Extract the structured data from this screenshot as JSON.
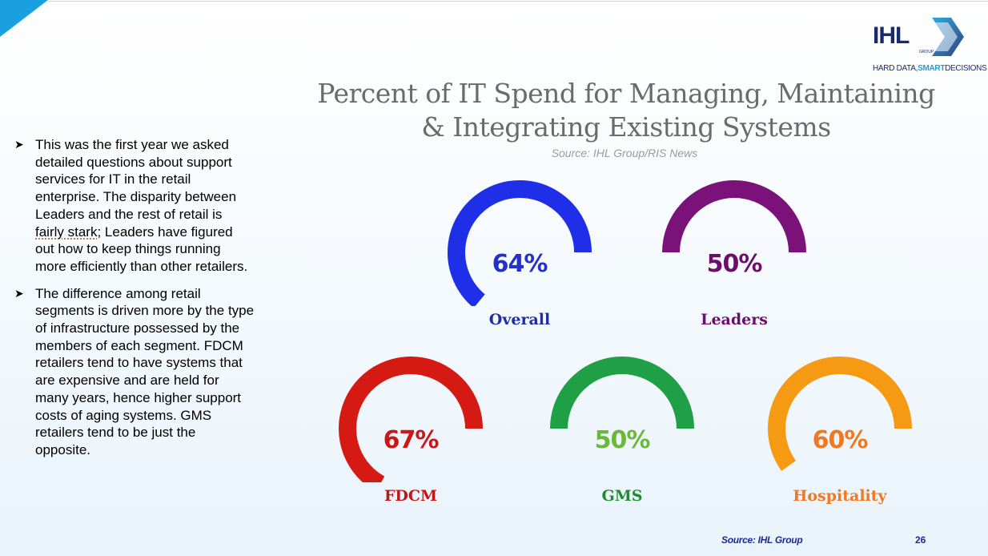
{
  "logo": {
    "text": "IHL",
    "group": "GROUP",
    "tagline_prefix": "HARD DATA,",
    "tagline_bold": "SMART",
    "tagline_suffix": "DECISIONS"
  },
  "title_line1": "Percent of IT Spend for Managing, Maintaining",
  "title_line2": "& Integrating Existing Systems",
  "subtitle": "Source: IHL Group/RIS News",
  "bullets": {
    "b1_part1": "This was the first year we asked detailed questions about support services for IT in the retail enterprise. The disparity between Leaders and the rest of retail is ",
    "b1_stark": "fairly stark",
    "b1_part2": "; Leaders have figured out how to keep things running more efficiently than other retailers.",
    "b2": "The difference among retail segments is driven more by the type of infrastructure possessed by the members of each segment. FDCM retailers tend to have systems that are expensive and are held for many years, hence higher support costs of aging systems. GMS retailers tend to be just the opposite."
  },
  "gauges": [
    {
      "id": "overall",
      "label": "Overall",
      "value": 64,
      "display": "64%",
      "color": "#1f2fe8",
      "text_color": "#2431c8",
      "label_color": "#1f2fa0"
    },
    {
      "id": "leaders",
      "label": "Leaders",
      "value": 50,
      "display": "50%",
      "color": "#7a127a",
      "text_color": "#6a0f6a",
      "label_color": "#6a0f6a"
    },
    {
      "id": "fdcm",
      "label": "FDCM",
      "value": 67,
      "display": "67%",
      "color": "#d41a12",
      "text_color": "#c8181a",
      "label_color": "#c01818"
    },
    {
      "id": "gms",
      "label": "GMS",
      "value": 50,
      "display": "50%",
      "color": "#1fa046",
      "text_color": "#6ab93a",
      "label_color": "#1f8a2e"
    },
    {
      "id": "hosp",
      "label": "Hospitality",
      "value": 60,
      "display": "60%",
      "color": "#f59a12",
      "text_color": "#f07822",
      "label_color": "#f07822"
    }
  ],
  "footer": {
    "source": "Source: IHL Group",
    "page": "26"
  }
}
